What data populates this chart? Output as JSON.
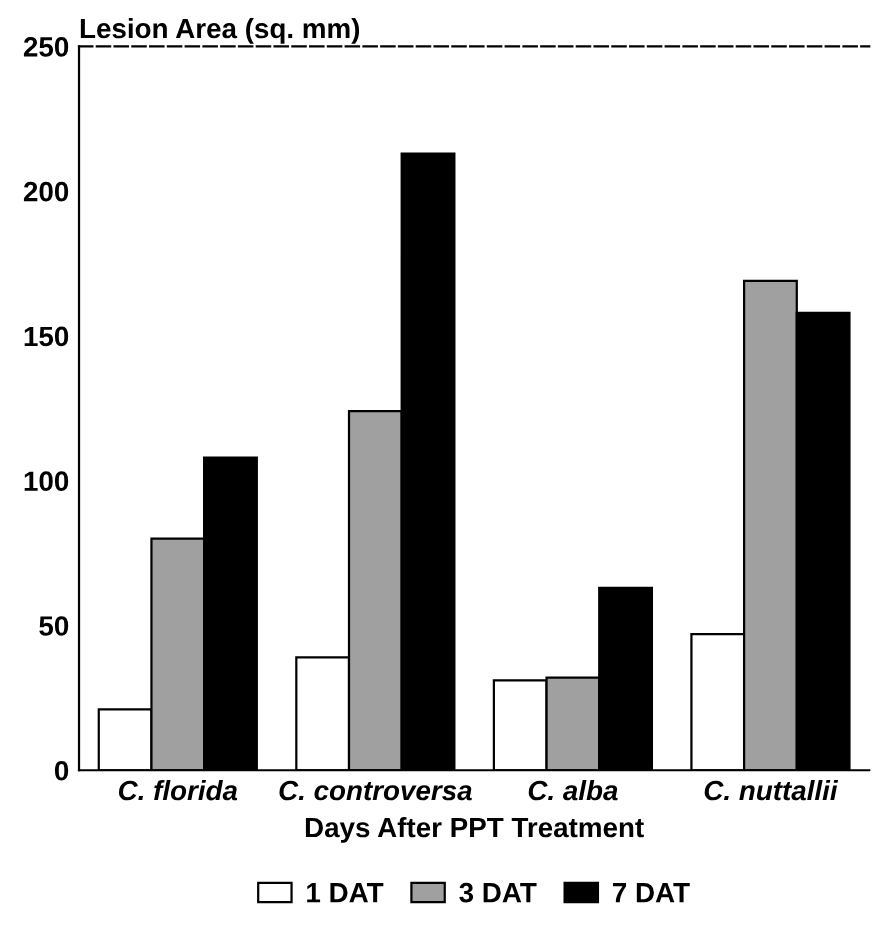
{
  "chart_data": {
    "type": "bar",
    "ylabel": "Lesion Area (sq. mm)",
    "xlabel": "Days After PPT Treatment",
    "categories": [
      "C. florida",
      "C. controversa",
      "C. alba",
      "C. nuttallii"
    ],
    "series": [
      {
        "name": "1 DAT",
        "color": "#ffffff",
        "values": [
          21,
          39,
          31,
          47
        ]
      },
      {
        "name": "3 DAT",
        "color": "#a0a0a0",
        "values": [
          80,
          124,
          32,
          169
        ]
      },
      {
        "name": "7 DAT",
        "color": "#000000",
        "values": [
          108,
          213,
          63,
          158
        ]
      }
    ],
    "ylim": [
      0,
      250
    ],
    "yticks": [
      0,
      50,
      100,
      150,
      200,
      250
    ],
    "grid": false,
    "legend": "bottom"
  }
}
